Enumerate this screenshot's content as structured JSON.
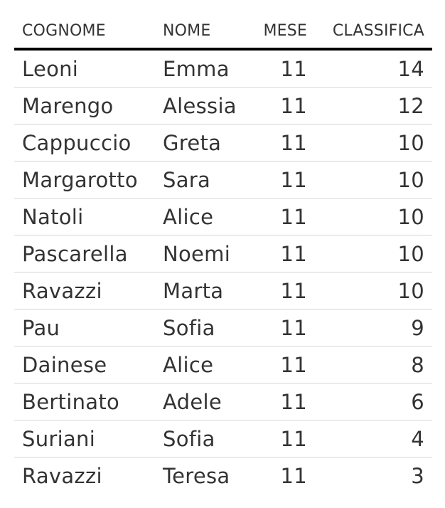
{
  "table": {
    "headers": {
      "cognome": "COGNOME",
      "nome": "NOME",
      "mese": "MESE",
      "classifica": "CLASSIFICA"
    },
    "rows": [
      {
        "cognome": "Leoni",
        "nome": "Emma",
        "mese": "11",
        "classifica": "14"
      },
      {
        "cognome": "Marengo",
        "nome": "Alessia",
        "mese": "11",
        "classifica": "12"
      },
      {
        "cognome": "Cappuccio",
        "nome": "Greta",
        "mese": "11",
        "classifica": "10"
      },
      {
        "cognome": "Margarotto",
        "nome": "Sara",
        "mese": "11",
        "classifica": "10"
      },
      {
        "cognome": "Natoli",
        "nome": "Alice",
        "mese": "11",
        "classifica": "10"
      },
      {
        "cognome": "Pascarella",
        "nome": "Noemi",
        "mese": "11",
        "classifica": "10"
      },
      {
        "cognome": "Ravazzi",
        "nome": "Marta",
        "mese": "11",
        "classifica": "10"
      },
      {
        "cognome": "Pau",
        "nome": "Sofia",
        "mese": "11",
        "classifica": "9"
      },
      {
        "cognome": "Dainese",
        "nome": "Alice",
        "mese": "11",
        "classifica": "8"
      },
      {
        "cognome": "Bertinato",
        "nome": "Adele",
        "mese": "11",
        "classifica": "6"
      },
      {
        "cognome": "Suriani",
        "nome": "Sofia",
        "mese": "11",
        "classifica": "4"
      },
      {
        "cognome": "Ravazzi",
        "nome": "Teresa",
        "mese": "11",
        "classifica": "3"
      }
    ]
  }
}
